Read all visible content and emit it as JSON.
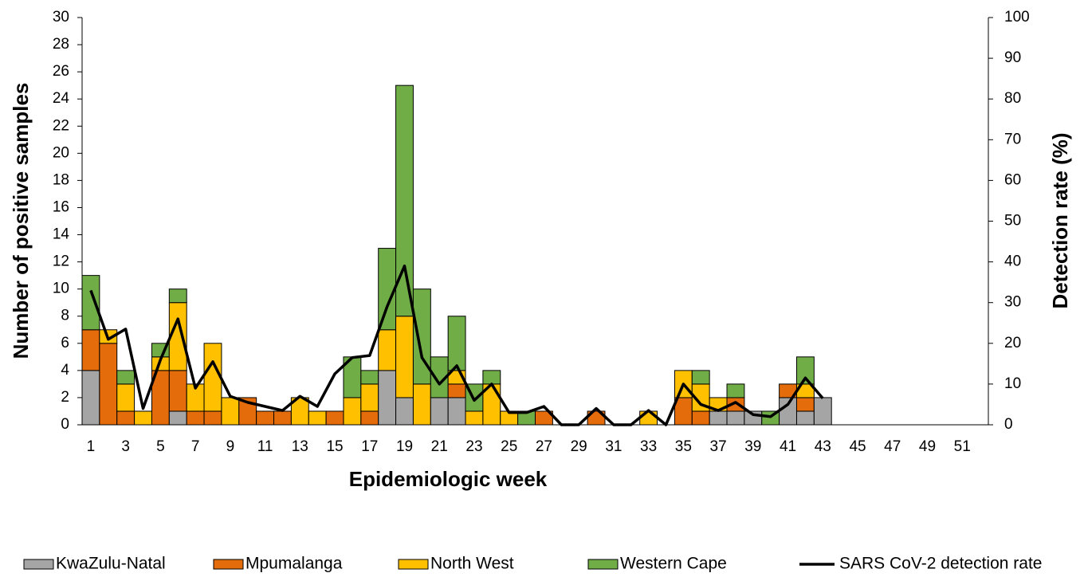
{
  "chart_data": {
    "type": "bar",
    "stacked": true,
    "x_label": "Epidemiologic week",
    "y_label": "Number of  positive samples",
    "y2_label": "Detection rate (%)",
    "categories": [
      1,
      null,
      3,
      null,
      5,
      null,
      7,
      null,
      9,
      null,
      11,
      null,
      13,
      null,
      15,
      null,
      17,
      null,
      19,
      null,
      21,
      null,
      23,
      null,
      25,
      null,
      27,
      null,
      29,
      null,
      31,
      null,
      33,
      null,
      35,
      null,
      37,
      null,
      39,
      null,
      41,
      null,
      43,
      null,
      45,
      null,
      47,
      null,
      49,
      null,
      51,
      null
    ],
    "series": [
      {
        "name": "KwaZulu-Natal",
        "color": "#a5a5a5",
        "values": [
          4,
          0,
          0,
          0,
          0,
          1,
          0,
          0,
          0,
          0,
          0,
          0,
          0,
          0,
          0,
          0,
          0,
          4,
          2,
          0,
          2,
          2,
          0,
          0,
          0,
          0,
          0,
          0,
          0,
          0,
          0,
          0,
          0,
          0,
          0,
          0,
          1,
          1,
          1,
          0,
          2,
          1,
          2,
          null,
          null,
          null,
          null,
          null,
          null,
          null,
          null,
          null
        ]
      },
      {
        "name": "Mpumalanga",
        "color": "#e46c0a",
        "values": [
          3,
          6,
          1,
          0,
          4,
          3,
          1,
          1,
          0,
          2,
          1,
          1,
          0,
          0,
          1,
          0,
          1,
          0,
          0,
          0,
          0,
          1,
          0,
          0,
          0,
          0,
          1,
          0,
          0,
          1,
          0,
          0,
          0,
          0,
          2,
          1,
          0,
          1,
          0,
          0,
          1,
          1,
          0,
          null,
          null,
          null,
          null,
          null,
          null,
          null,
          null,
          null
        ]
      },
      {
        "name": "North West",
        "color": "#ffc000",
        "values": [
          0,
          1,
          2,
          1,
          1,
          5,
          2,
          5,
          2,
          0,
          0,
          0,
          2,
          1,
          0,
          2,
          2,
          3,
          6,
          3,
          0,
          1,
          1,
          3,
          1,
          0,
          0,
          0,
          0,
          0,
          0,
          0,
          1,
          0,
          2,
          2,
          1,
          0,
          0,
          0,
          0,
          1,
          0,
          null,
          null,
          null,
          null,
          null,
          null,
          null,
          null,
          null
        ]
      },
      {
        "name": "Western Cape",
        "color": "#70ad47",
        "values": [
          4,
          0,
          1,
          0,
          1,
          1,
          0,
          0,
          0,
          0,
          0,
          0,
          0,
          0,
          0,
          3,
          1,
          6,
          17,
          7,
          3,
          4,
          2,
          1,
          0,
          1,
          0,
          0,
          0,
          0,
          0,
          0,
          0,
          0,
          0,
          1,
          0,
          1,
          0,
          1,
          0,
          2,
          0,
          null,
          null,
          null,
          null,
          null,
          null,
          null,
          null,
          null
        ]
      },
      {
        "name": "SARS CoV-2 detection rate",
        "color": "#000000",
        "type": "line",
        "axis": "y2",
        "values": [
          33,
          21,
          23.5,
          4,
          16,
          26,
          9,
          15.5,
          7,
          5.5,
          4.5,
          3.5,
          7,
          4.5,
          12.5,
          16.5,
          17,
          29,
          39,
          16.5,
          10,
          14.5,
          6,
          10,
          3,
          3,
          4.5,
          0,
          0,
          4,
          0,
          0,
          3.5,
          0,
          10,
          5,
          3.5,
          5.5,
          2.5,
          2,
          5,
          11.5,
          6.5,
          null,
          null,
          null,
          null,
          null,
          null,
          null,
          null,
          null
        ]
      }
    ],
    "ylim": [
      0,
      30
    ],
    "yticks": [
      0,
      2,
      4,
      6,
      8,
      10,
      12,
      14,
      16,
      18,
      20,
      22,
      24,
      26,
      28,
      30
    ],
    "y2lim": [
      0,
      100
    ],
    "y2ticks": [
      0,
      10,
      20,
      30,
      40,
      50,
      60,
      70,
      80,
      90,
      100
    ],
    "grid": false,
    "legend": "bottom"
  }
}
